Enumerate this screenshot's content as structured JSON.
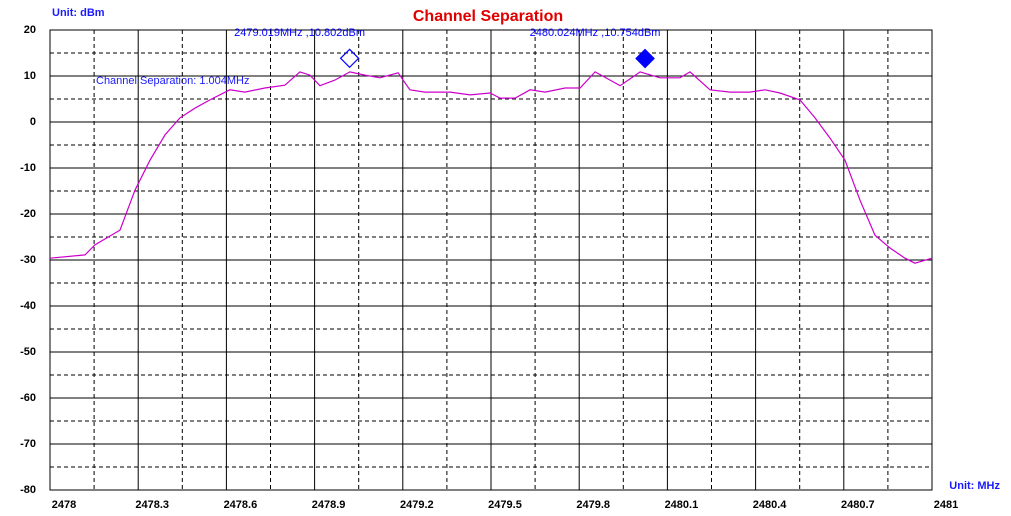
{
  "chart_data": {
    "type": "line",
    "title": "Channel Separation",
    "y_unit": "Unit: dBm",
    "x_unit": "Unit: MHz",
    "xlim": [
      2478,
      2481
    ],
    "ylim": [
      -80,
      20
    ],
    "xticks": [
      2478,
      2478.3,
      2478.6,
      2478.9,
      2479.2,
      2479.5,
      2479.8,
      2480.1,
      2480.4,
      2480.7,
      2481
    ],
    "yticks": [
      20,
      10,
      0,
      -10,
      -20,
      -30,
      -40,
      -50,
      -60,
      -70,
      -80
    ],
    "grid": true,
    "series": [
      {
        "color": "#cc00cc",
        "x": [
          2478.0,
          2478.119,
          2478.153,
          2478.238,
          2478.289,
          2478.34,
          2478.391,
          2478.442,
          2478.493,
          2478.544,
          2478.612,
          2478.663,
          2478.731,
          2478.799,
          2478.85,
          2478.884,
          2478.918,
          2478.969,
          2479.02,
          2479.071,
          2479.122,
          2479.184,
          2479.224,
          2479.276,
          2479.361,
          2479.429,
          2479.497,
          2479.531,
          2479.582,
          2479.633,
          2479.684,
          2479.752,
          2479.803,
          2479.854,
          2479.905,
          2479.939,
          2480.007,
          2480.075,
          2480.143,
          2480.177,
          2480.245,
          2480.313,
          2480.381,
          2480.432,
          2480.483,
          2480.551,
          2480.602,
          2480.653,
          2480.704,
          2480.755,
          2480.806,
          2480.857,
          2480.908,
          2480.942,
          2481.0
        ],
        "values": [
          -29.6,
          -28.9,
          -26.7,
          -23.5,
          -14.8,
          -8.3,
          -2.8,
          0.9,
          3.0,
          4.8,
          7.0,
          6.5,
          7.4,
          8.0,
          10.9,
          10.2,
          7.9,
          9.1,
          10.9,
          10.2,
          9.6,
          10.7,
          7.0,
          6.5,
          6.5,
          5.9,
          6.3,
          5.2,
          5.2,
          7.0,
          6.5,
          7.4,
          7.4,
          10.9,
          9.1,
          7.9,
          10.9,
          9.6,
          9.6,
          10.9,
          7.0,
          6.5,
          6.5,
          7.0,
          6.3,
          4.8,
          0.9,
          -3.5,
          -8.3,
          -17.0,
          -24.6,
          -27.4,
          -29.6,
          -30.7,
          -29.6
        ]
      }
    ],
    "markers": [
      {
        "x": 2479.019,
        "y": 10.802,
        "label": "2479.019MHz ,10.802dBm",
        "filled": false,
        "color": "#0000ff"
      },
      {
        "x": 2480.024,
        "y": 10.754,
        "label": "2480.024MHz ,10.754dBm",
        "filled": true,
        "color": "#0000ff"
      }
    ],
    "annotation": "Channel Separation: 1.004MHz"
  }
}
